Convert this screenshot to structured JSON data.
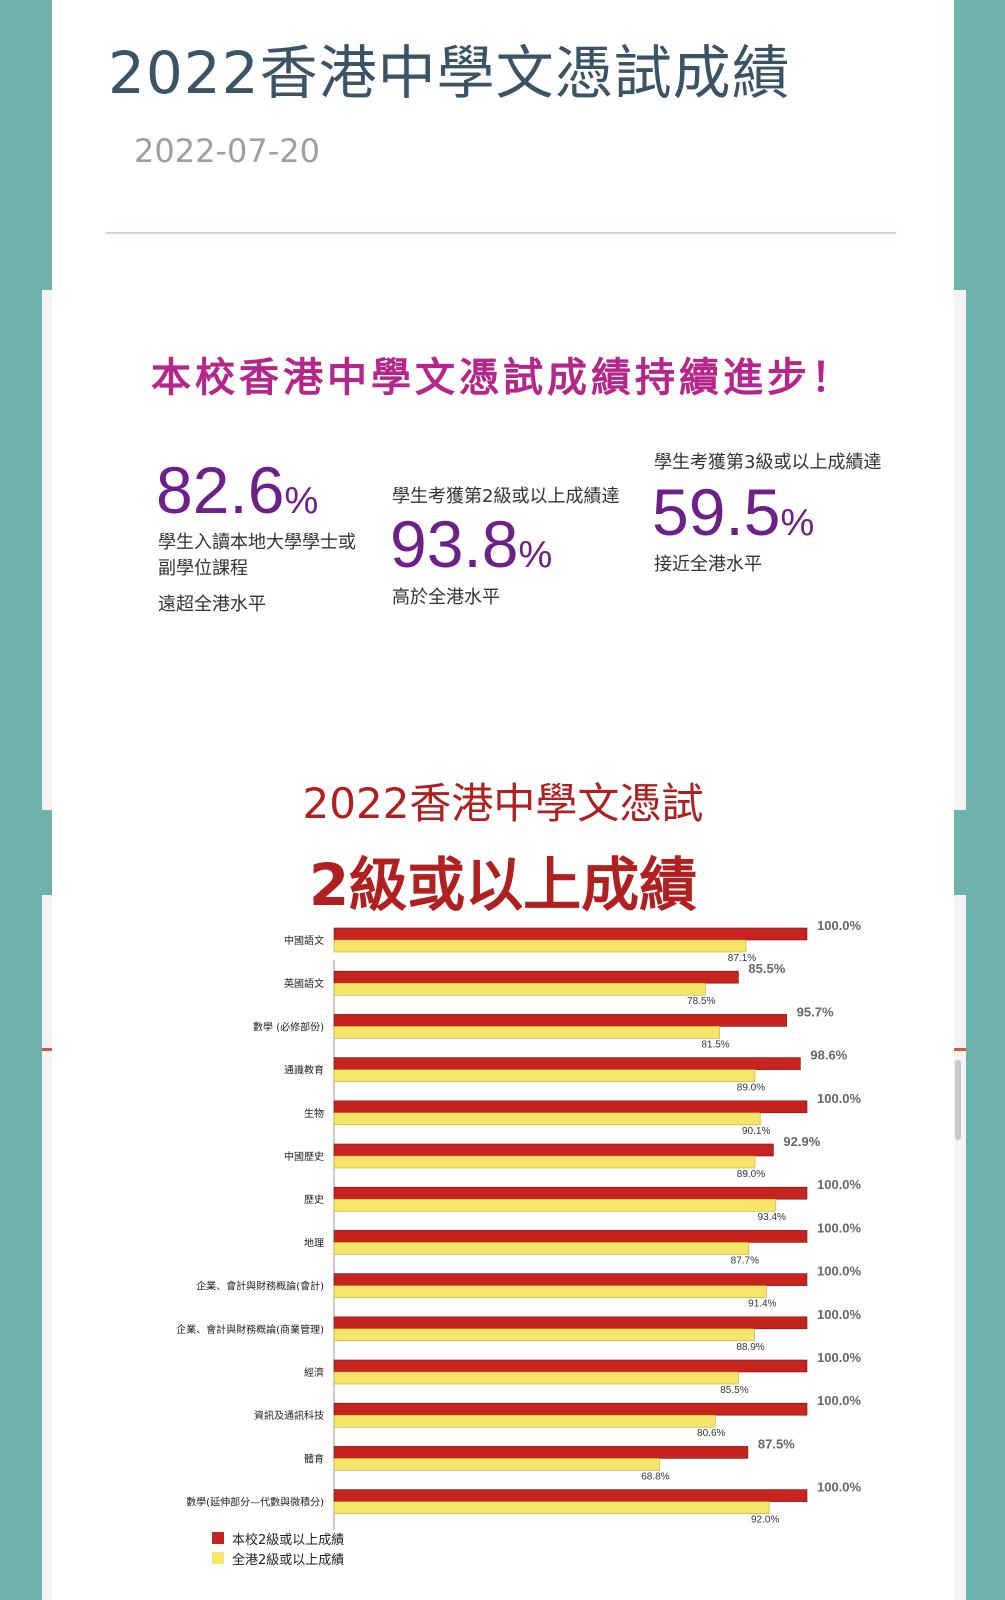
{
  "article": {
    "title": "2022香港中學文憑試成績",
    "date": "2022-07-20"
  },
  "headline": "本校香港中學文憑試成績持續進步！",
  "stats": [
    {
      "value": "82.6",
      "unit": "%",
      "line1": "學生入讀本地大學學士或",
      "line2": "副學位課程",
      "note": "遠超全港水平",
      "pre": ""
    },
    {
      "value": "93.8",
      "unit": "%",
      "pre": "學生考獲第2級或以上成績達",
      "line1": "",
      "line2": "",
      "note": "高於全港水平"
    },
    {
      "value": "59.5",
      "unit": "%",
      "pre": "學生考獲第3級或以上成績達",
      "line1": "",
      "line2": "",
      "note": "接近全港水平"
    }
  ],
  "chart_heading": {
    "line1": "2022香港中學文憑試",
    "line2": "2級或以上成績"
  },
  "chart_data": {
    "type": "bar",
    "orientation": "horizontal",
    "categories": [
      "中國語文",
      "英國語文",
      "數學 (必修部份)",
      "通識教育",
      "生物",
      "中國歷史",
      "歷史",
      "地理",
      "企業、會計與財務概論(會計)",
      "企業、會計與財務概論(商業管理)",
      "經濟",
      "資訊及通訊科技",
      "體育",
      "數學(延伸部分—代數與微積分)"
    ],
    "series": [
      {
        "name": "本校2級或以上成績",
        "color": "#c8241f",
        "values": [
          100.0,
          85.5,
          95.7,
          98.6,
          100.0,
          92.9,
          100.0,
          100.0,
          100.0,
          100.0,
          100.0,
          100.0,
          87.5,
          100.0
        ]
      },
      {
        "name": "全港2級或以上成績",
        "color": "#f5e66a",
        "values": [
          87.1,
          78.5,
          81.5,
          89.0,
          90.1,
          89.0,
          93.4,
          87.7,
          91.4,
          88.9,
          85.5,
          80.6,
          68.8,
          92.0
        ]
      }
    ],
    "value_labels_school": [
      "100.0%",
      "85.5%",
      "95.7%",
      "98.6%",
      "100.0%",
      "92.9%",
      "100.0%",
      "100.0%",
      "100.0%",
      "100.0%",
      "100.0%",
      "100.0%",
      "87.5%",
      "100.0%"
    ],
    "value_labels_hk": [
      "87.1%",
      "78.5%",
      "81.5%",
      "89.0%",
      "90.1%",
      "89.0%",
      "93.4%",
      "87.7%",
      "91.4%",
      "88.9%",
      "85.5%",
      "80.6%",
      "68.8%",
      "92.0%"
    ],
    "x_ticks": [
      "0%",
      "20%",
      "40%",
      "60%",
      "80%",
      "100%"
    ],
    "xlim": [
      0,
      100
    ],
    "legend_position": "bottom-left"
  }
}
